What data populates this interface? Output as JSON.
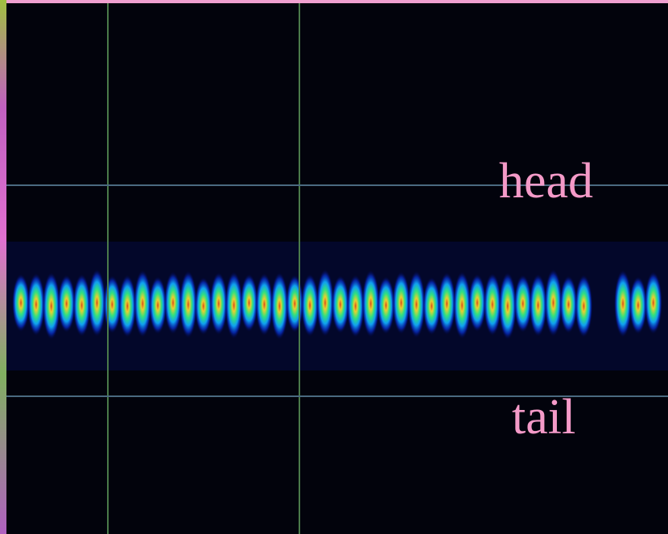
{
  "labels": {
    "head": "head",
    "tail": "tail"
  }
}
